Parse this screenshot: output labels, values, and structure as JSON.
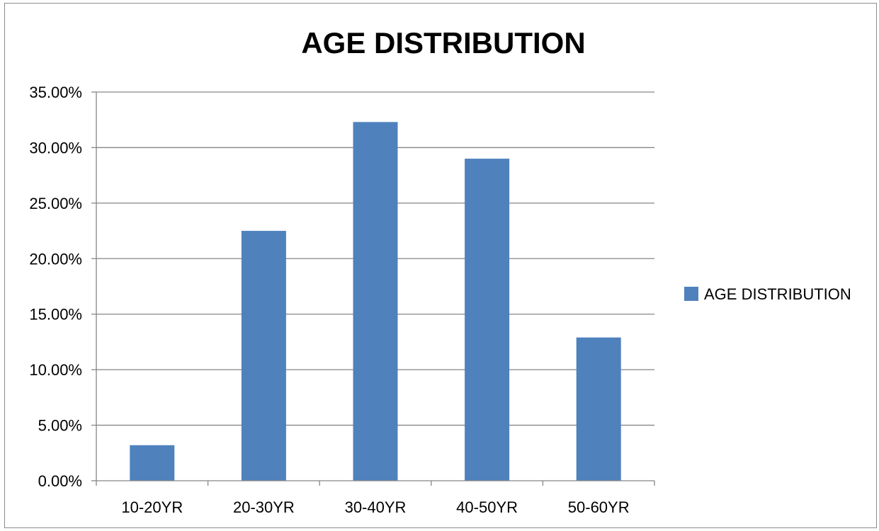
{
  "chart_data": {
    "type": "bar",
    "title": "AGE DISTRIBUTION",
    "categories": [
      "10-20YR",
      "20-30YR",
      "30-40YR",
      "40-50YR",
      "50-60YR"
    ],
    "series": [
      {
        "name": "AGE DISTRIBUTION",
        "values": [
          3.2,
          22.5,
          32.3,
          29.0,
          12.9
        ]
      }
    ],
    "y_tick_labels": [
      "0.00%",
      "5.00%",
      "10.00%",
      "15.00%",
      "20.00%",
      "25.00%",
      "30.00%",
      "35.00%"
    ],
    "ylim": [
      0,
      35
    ],
    "y_unit": "%",
    "grid": true,
    "legend_position": "right",
    "bar_color": "#4f81bd",
    "grid_color": "#868686"
  }
}
